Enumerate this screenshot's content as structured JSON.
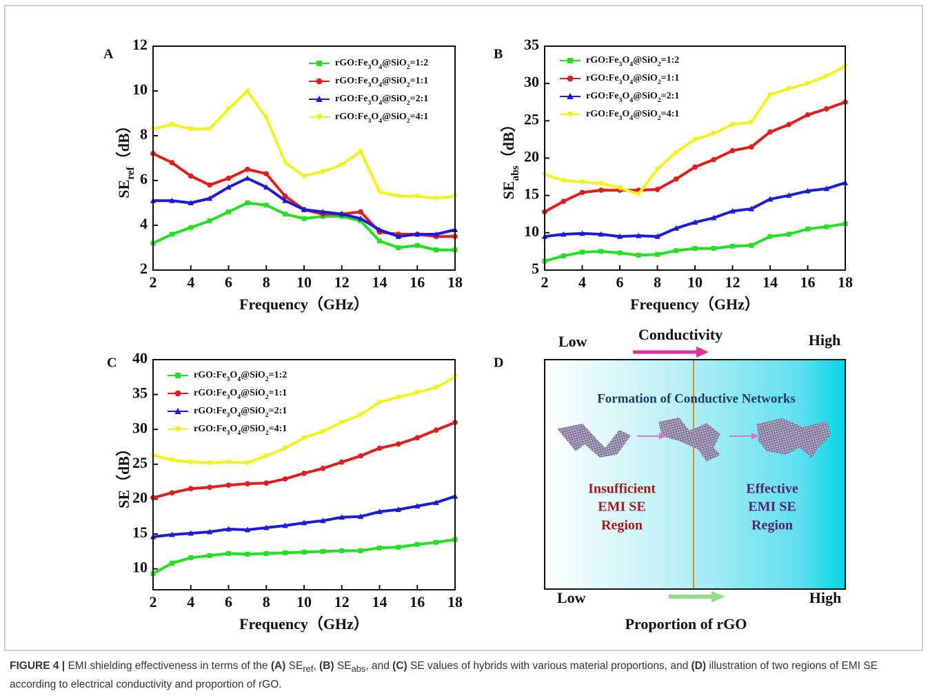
{
  "chart_data": [
    {
      "type": "line",
      "panel_label": "A",
      "x_label": "Frequency（GHz）",
      "y_label": "SEref（dB）",
      "x": [
        2,
        3,
        4,
        5,
        6,
        7,
        8,
        9,
        10,
        11,
        12,
        13,
        14,
        15,
        16,
        17,
        18
      ],
      "xlim": [
        2,
        18
      ],
      "xticks": [
        2,
        4,
        6,
        8,
        10,
        12,
        14,
        16,
        18
      ],
      "ylim": [
        2,
        12
      ],
      "yticks": [
        2,
        4,
        6,
        8,
        10,
        12
      ],
      "legend": "upper right",
      "series": [
        {
          "name": "rGO:Fe3O4@SiO2=1:2",
          "color": "#22e022",
          "marker": "square",
          "values": [
            3.2,
            3.6,
            3.9,
            4.2,
            4.6,
            5.0,
            4.9,
            4.5,
            4.3,
            4.4,
            4.4,
            4.2,
            3.3,
            3.0,
            3.1,
            2.9,
            2.9
          ]
        },
        {
          "name": "rGO:Fe3O4@SiO2=1:1",
          "color": "#e31c1c",
          "marker": "circle",
          "values": [
            7.2,
            6.8,
            6.2,
            5.8,
            6.1,
            6.5,
            6.3,
            5.3,
            4.7,
            4.5,
            4.5,
            4.6,
            3.7,
            3.6,
            3.6,
            3.5,
            3.5
          ]
        },
        {
          "name": "rGO:Fe3O4@SiO2=2:1",
          "color": "#1c1cd8",
          "marker": "triangle-up",
          "values": [
            5.1,
            5.1,
            5.0,
            5.2,
            5.7,
            6.1,
            5.7,
            5.1,
            4.7,
            4.6,
            4.5,
            4.3,
            3.8,
            3.5,
            3.6,
            3.6,
            3.8
          ]
        },
        {
          "name": "rGO:Fe3O4@SiO2=4:1",
          "color": "#f4f21c",
          "marker": "triangle-down",
          "values": [
            8.3,
            8.5,
            8.3,
            8.3,
            9.2,
            10.0,
            8.8,
            6.8,
            6.2,
            6.4,
            6.7,
            7.3,
            5.5,
            5.3,
            5.3,
            5.2,
            5.3
          ]
        }
      ]
    },
    {
      "type": "line",
      "panel_label": "B",
      "x_label": "Frequency（GHz）",
      "y_label": "SEabs（dB）",
      "x": [
        2,
        3,
        4,
        5,
        6,
        7,
        8,
        9,
        10,
        11,
        12,
        13,
        14,
        15,
        16,
        17,
        18
      ],
      "xlim": [
        2,
        18
      ],
      "xticks": [
        2,
        4,
        6,
        8,
        10,
        12,
        14,
        16,
        18
      ],
      "ylim": [
        5,
        35
      ],
      "yticks": [
        5,
        10,
        15,
        20,
        25,
        30,
        35
      ],
      "legend": "upper left",
      "series": [
        {
          "name": "rGO:Fe3O4@SiO2=1:2",
          "color": "#22e022",
          "marker": "square",
          "values": [
            6.2,
            6.9,
            7.4,
            7.5,
            7.3,
            7.0,
            7.1,
            7.6,
            7.9,
            7.9,
            8.2,
            8.3,
            9.5,
            9.8,
            10.5,
            10.8,
            11.2
          ]
        },
        {
          "name": "rGO:Fe3O4@SiO2=1:1",
          "color": "#e31c1c",
          "marker": "circle",
          "values": [
            12.8,
            14.2,
            15.4,
            15.7,
            15.7,
            15.7,
            15.8,
            17.2,
            18.8,
            19.8,
            21.0,
            21.5,
            23.5,
            24.5,
            25.8,
            26.6,
            27.5
          ]
        },
        {
          "name": "rGO:Fe3O4@SiO2=2:1",
          "color": "#1c1cd8",
          "marker": "triangle-up",
          "values": [
            9.5,
            9.8,
            9.9,
            9.8,
            9.5,
            9.6,
            9.5,
            10.6,
            11.4,
            12.0,
            12.9,
            13.2,
            14.5,
            15.0,
            15.6,
            15.9,
            16.7
          ]
        },
        {
          "name": "rGO:Fe3O4@SiO2=4:1",
          "color": "#f4f21c",
          "marker": "triangle-down",
          "values": [
            17.8,
            17.0,
            16.8,
            16.6,
            16.0,
            15.2,
            18.5,
            20.8,
            22.5,
            23.3,
            24.5,
            24.8,
            28.5,
            29.3,
            30.0,
            31.0,
            32.3
          ]
        }
      ]
    },
    {
      "type": "line",
      "panel_label": "C",
      "x_label": "Frequency（GHz）",
      "y_label": "SE（dB）",
      "x": [
        2,
        3,
        4,
        5,
        6,
        7,
        8,
        9,
        10,
        11,
        12,
        13,
        14,
        15,
        16,
        17,
        18
      ],
      "xlim": [
        2,
        18
      ],
      "xticks": [
        2,
        4,
        6,
        8,
        10,
        12,
        14,
        16,
        18
      ],
      "ylim": [
        7,
        40
      ],
      "yticks": [
        10,
        15,
        20,
        25,
        30,
        35,
        40
      ],
      "legend": "upper left",
      "series": [
        {
          "name": "rGO:Fe3O4@SiO2=1:2",
          "color": "#22e022",
          "marker": "square",
          "values": [
            9.3,
            10.8,
            11.6,
            11.9,
            12.2,
            12.1,
            12.2,
            12.3,
            12.4,
            12.5,
            12.6,
            12.6,
            13.0,
            13.1,
            13.5,
            13.8,
            14.2
          ]
        },
        {
          "name": "rGO:Fe3O4@SiO2=1:1",
          "color": "#e31c1c",
          "marker": "circle",
          "values": [
            20.2,
            20.9,
            21.5,
            21.7,
            22.0,
            22.2,
            22.3,
            22.9,
            23.7,
            24.4,
            25.3,
            26.2,
            27.3,
            27.9,
            28.8,
            29.9,
            31.0
          ]
        },
        {
          "name": "rGO:Fe3O4@SiO2=2:1",
          "color": "#1c1cd8",
          "marker": "triangle-up",
          "values": [
            14.6,
            14.9,
            15.1,
            15.3,
            15.7,
            15.6,
            15.9,
            16.2,
            16.6,
            16.9,
            17.4,
            17.5,
            18.2,
            18.5,
            19.0,
            19.5,
            20.4
          ]
        },
        {
          "name": "rGO:Fe3O4@SiO2=4:1",
          "color": "#f4f21c",
          "marker": "triangle-down",
          "values": [
            26.3,
            25.6,
            25.3,
            25.2,
            25.3,
            25.2,
            26.2,
            27.3,
            28.8,
            29.7,
            31.0,
            32.1,
            33.9,
            34.6,
            35.3,
            36.0,
            37.5
          ]
        }
      ]
    }
  ],
  "diagram": {
    "panel_label": "D",
    "top_low": "Low",
    "top_title": "Conductivity",
    "top_high": "High",
    "network_title": "Formation of Conductive Networks",
    "left_region": [
      "Insufficient",
      "EMI SE",
      "Region"
    ],
    "right_region": [
      "Effective",
      "EMI SE",
      "Region"
    ],
    "bottom_low": "Low",
    "bottom_high": "High",
    "bottom_title": "Proportion of rGO"
  },
  "caption": {
    "label": "FIGURE 4 |",
    "text": "EMI shielding effectiveness in terms of the (A) SEref, (B) SEabs, and (C) SE values of hybrids with various material proportions, and (D) illustration of two regions of EMI SE according to electrical conductivity and proportion of rGO."
  }
}
